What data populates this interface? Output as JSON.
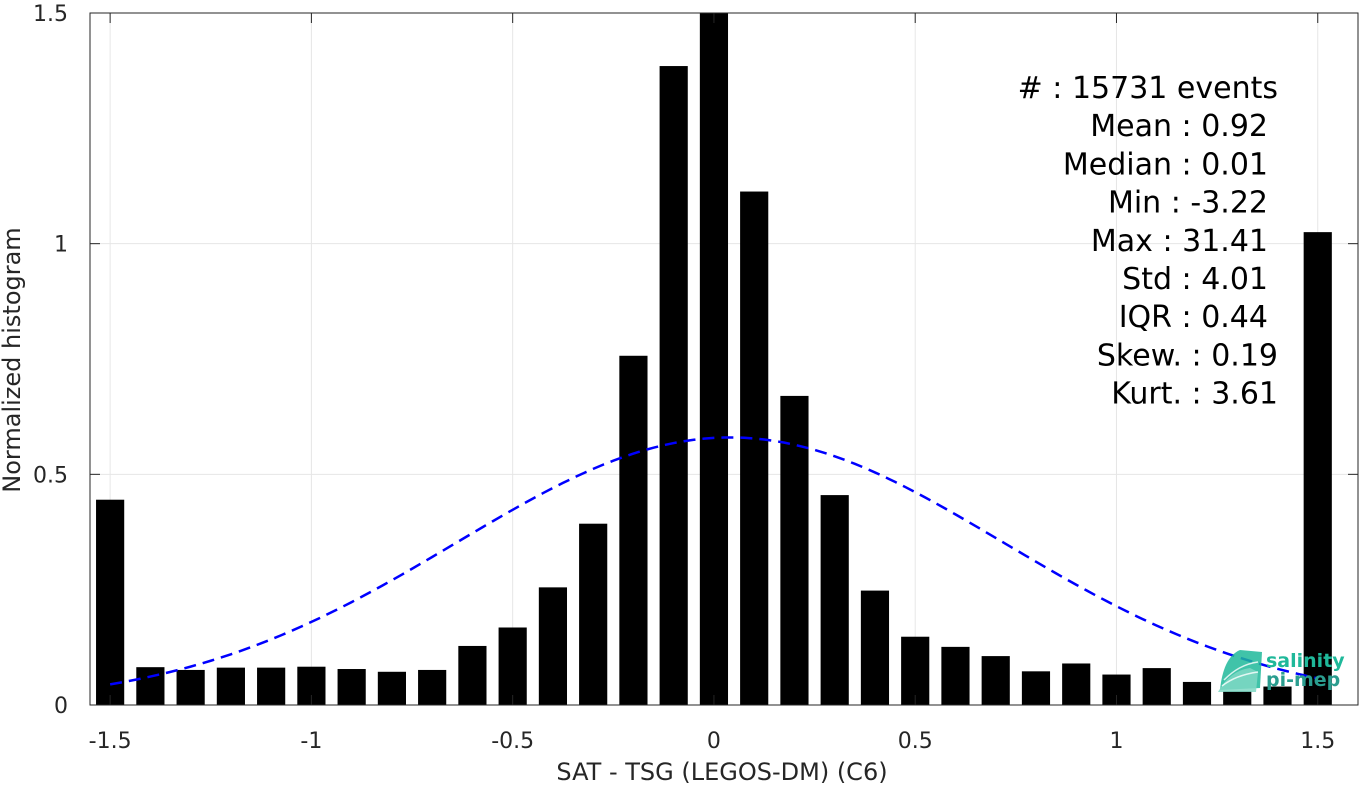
{
  "chart_data": {
    "type": "bar",
    "xlabel": "SAT - TSG (LEGOS-DM) (C6)",
    "ylabel": "Normalized histogram",
    "xlim": [
      -1.55,
      1.6
    ],
    "ylim": [
      0,
      1.5
    ],
    "x_ticks": [
      -1.5,
      -1,
      -0.5,
      0,
      0.5,
      1,
      1.5
    ],
    "x_tick_labels": [
      "-1.5",
      "-1",
      "-0.5",
      "0",
      "0.5",
      "1",
      "1.5"
    ],
    "y_ticks": [
      0,
      0.5,
      1,
      1.5
    ],
    "y_tick_labels": [
      "0",
      "0.5",
      "1",
      "1.5"
    ],
    "grid": true,
    "bar_width": 0.07,
    "bar_color": "#000000",
    "x": [
      -1.5,
      -1.4,
      -1.3,
      -1.2,
      -1.1,
      -1.0,
      -0.9,
      -0.8,
      -0.7,
      -0.6,
      -0.5,
      -0.4,
      -0.3,
      -0.2,
      -0.1,
      0.0,
      0.1,
      0.2,
      0.3,
      0.4,
      0.5,
      0.6,
      0.7,
      0.8,
      0.9,
      1.0,
      1.1,
      1.2,
      1.3,
      1.4,
      1.5
    ],
    "values": [
      0.445,
      0.082,
      0.076,
      0.081,
      0.081,
      0.083,
      0.078,
      0.072,
      0.076,
      0.128,
      0.168,
      0.255,
      0.393,
      0.757,
      1.385,
      1.5,
      1.113,
      0.67,
      0.455,
      0.248,
      0.148,
      0.126,
      0.106,
      0.073,
      0.09,
      0.066,
      0.08,
      0.05,
      0.03,
      0.04,
      1.025
    ],
    "fit_curve": {
      "type": "gaussian",
      "color": "#0000ff",
      "style": "dashed",
      "mean": 0.04,
      "sigma": 0.68,
      "peak": 0.58,
      "x_range": [
        -1.5,
        1.5
      ]
    },
    "stats": [
      {
        "label": "#  : 15731 events"
      },
      {
        "label": "Mean : 0.92"
      },
      {
        "label": "Median : 0.01"
      },
      {
        "label": "Min : -3.22"
      },
      {
        "label": "Max : 31.41"
      },
      {
        "label": "Std : 4.01"
      },
      {
        "label": "IQR : 0.44"
      },
      {
        "label": "Skew. : 0.19"
      },
      {
        "label": "Kurt. : 3.61"
      }
    ]
  },
  "logo": {
    "line1": "salinity",
    "line2": "pi-mep",
    "color1": "#1fb89a",
    "color2": "#2a9d8f"
  }
}
